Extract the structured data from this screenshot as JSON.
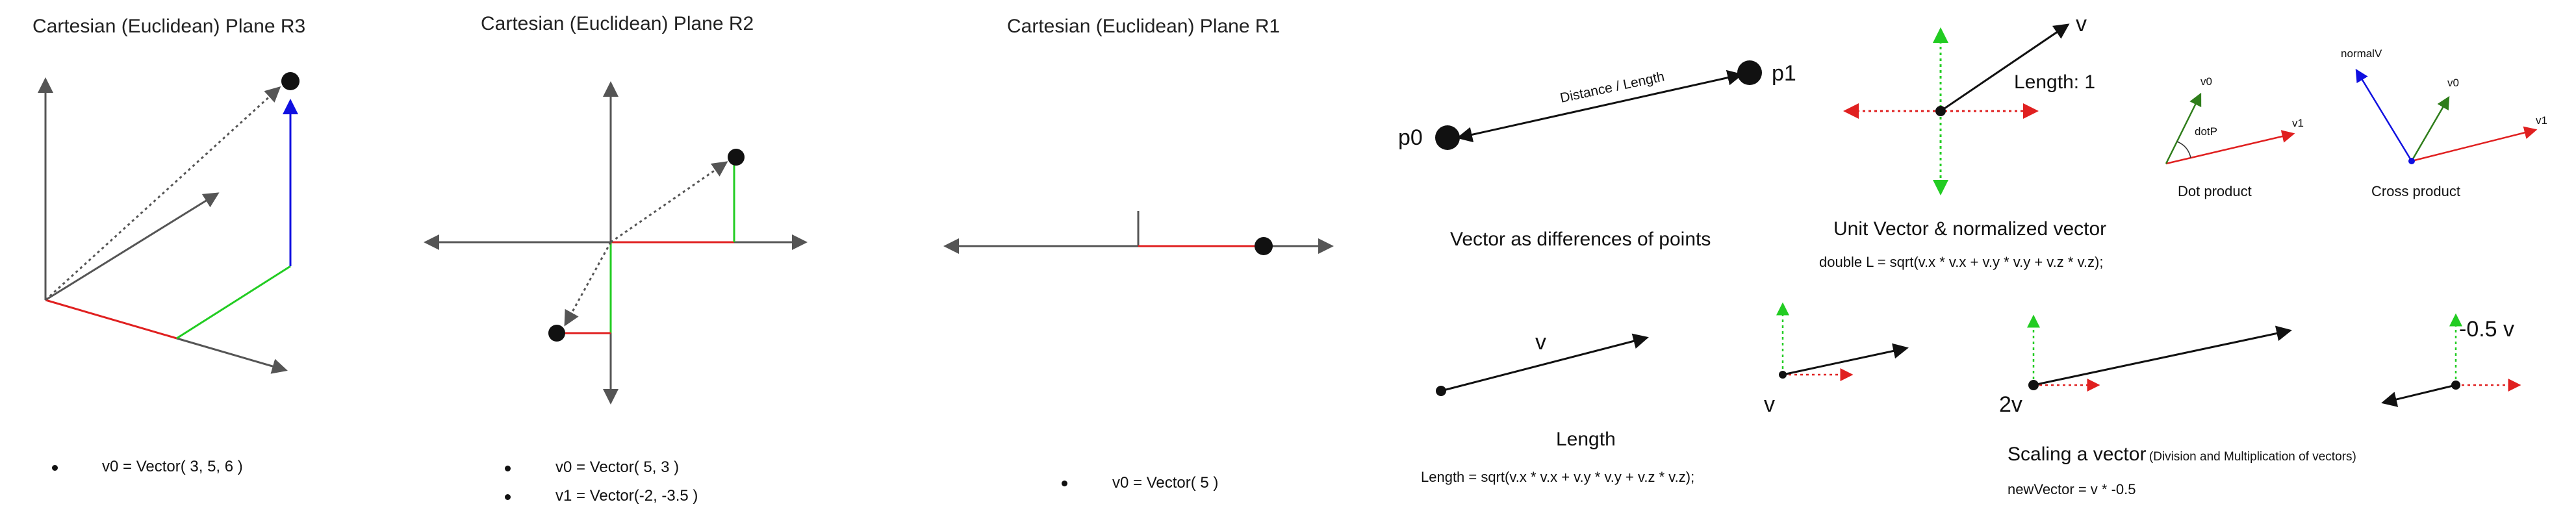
{
  "panels": {
    "r3": {
      "title": "Cartesian (Euclidean) Plane R3",
      "vectors": [
        "v0 = Vector( 3, 5, 6 )"
      ]
    },
    "r2": {
      "title": "Cartesian (Euclidean) Plane R2",
      "vectors": [
        "v0 = Vector( 5, 3 )",
        "v1 = Vector(-2, -3.5 )"
      ]
    },
    "r1": {
      "title": "Cartesian (Euclidean) Plane R1",
      "vectors": [
        "v0 = Vector( 5 )"
      ]
    }
  },
  "points": {
    "p0": "p0",
    "p1": "p1",
    "distance_label": "Distance / Length",
    "caption": "Vector as differences of points"
  },
  "unit": {
    "v_label": "v",
    "length_label": "Length: 1",
    "caption": "Unit Vector & normalized vector",
    "formula": "double L = sqrt(v.x * v.x + v.y * v.y + v.z * v.z);"
  },
  "dot_product": {
    "v0": "v0",
    "v1": "v1",
    "angle": "dotP",
    "caption": "Dot product"
  },
  "cross_product": {
    "normal": "normalV",
    "v0": "v0",
    "v1": "v1",
    "caption": "Cross product"
  },
  "length": {
    "v_label": "v",
    "caption": "Length",
    "formula": "Length = sqrt(v.x * v.x + v.y * v.y + v.z * v.z);"
  },
  "scaling": {
    "v_label": "v",
    "twov_label": "2v",
    "neg_label": "-0.5 v",
    "caption": "Scaling a vector",
    "caption_note": "(Division and Multiplication of vectors)",
    "formula": "newVector =  v * -0.5"
  },
  "colors": {
    "axis": "#555555",
    "red": "#e02020",
    "green": "#22cc22",
    "blue": "#1010e0",
    "black": "#111111",
    "olive": "#2e7d1a"
  }
}
